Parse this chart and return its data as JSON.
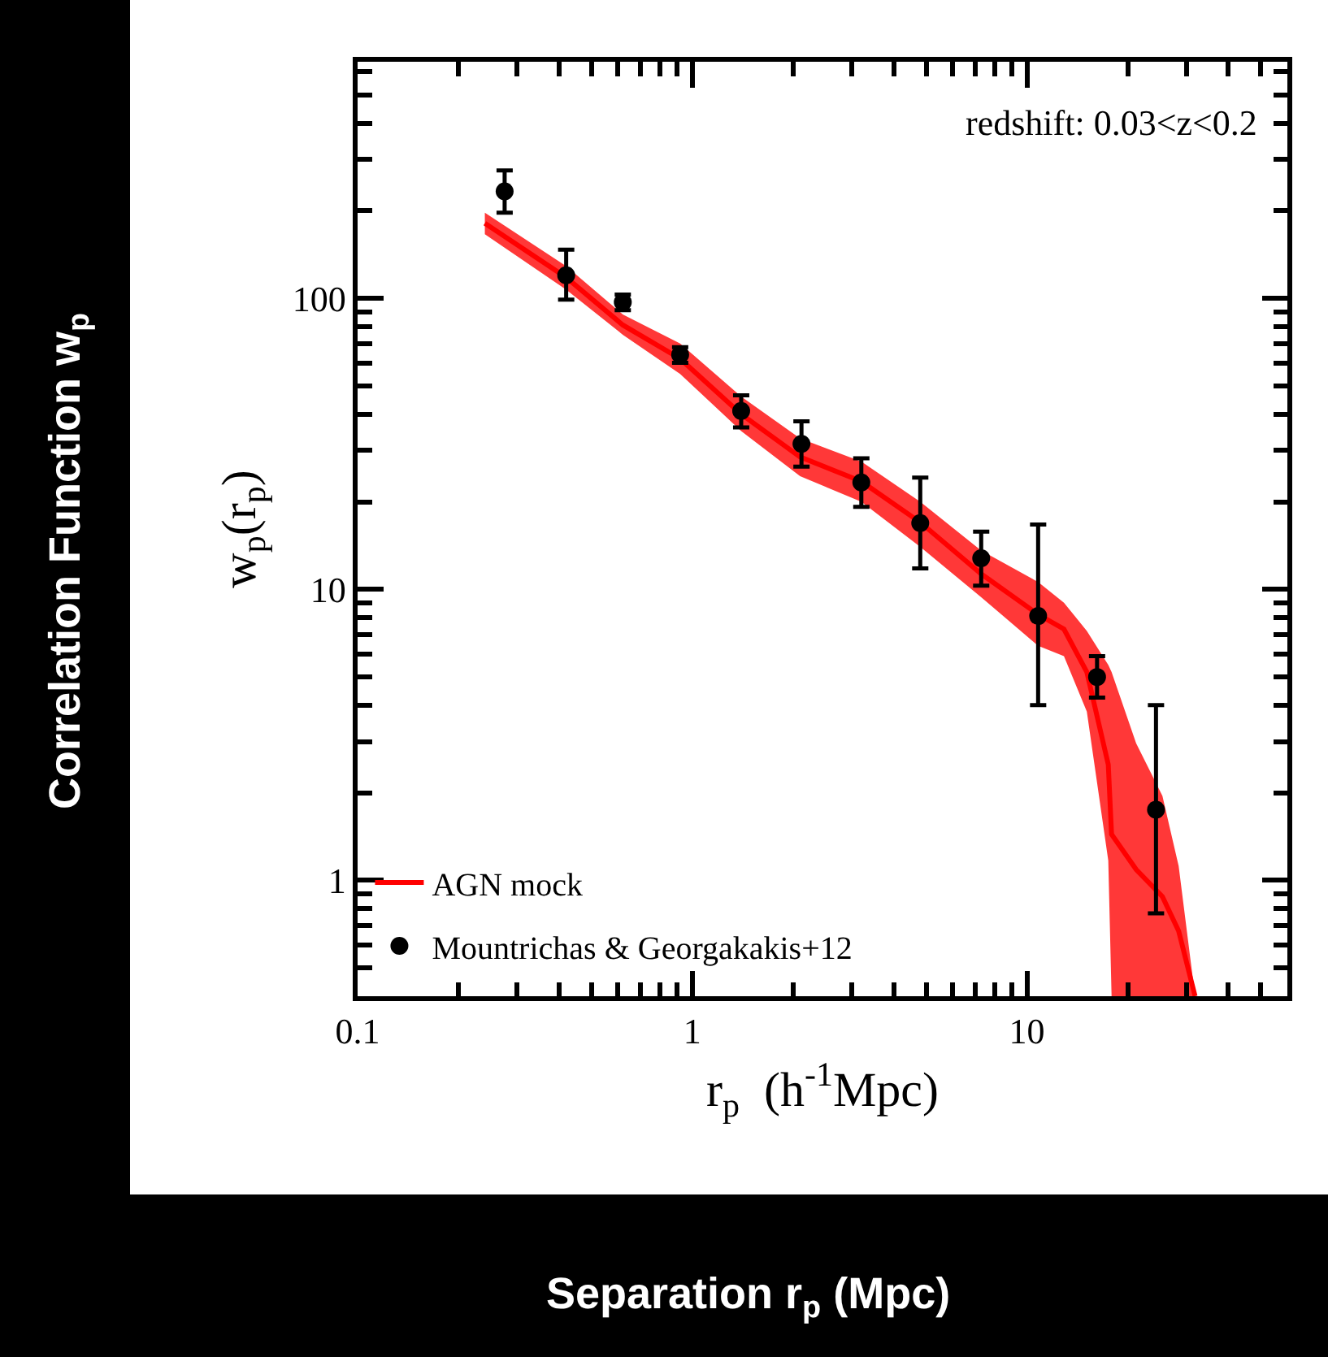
{
  "chart_data": {
    "type": "scatter",
    "xlabel": "r$_{p}$  (h$^{-1}$Mpc)",
    "ylabel": "w$_{p}$(r$_{p}$)",
    "annotations": [
      "redshift: 0.03<z<0.2",
      "Correlation Function w$_{p}$",
      "Separation r$_{p}$ (Mpc)"
    ],
    "log": "xy",
    "xlim": [
      0.1,
      60
    ],
    "ylim": [
      0.4,
      650
    ],
    "xticks": [
      0.1,
      1,
      10
    ],
    "yticks": [
      1,
      10,
      100
    ],
    "legend": "bottom left",
    "grid": false,
    "series": [
      {
        "name": "AGN mock",
        "type": "line",
        "marker": "none",
        "color": "#ff0000",
        "x": [
          0.24,
          0.42,
          0.62,
          0.92,
          1.4,
          2.1,
          3.2,
          4.8,
          7.3,
          10.8,
          12.9,
          15.1,
          17.5,
          17.9,
          21.2,
          25.4,
          28.4,
          31.8
        ],
        "values": [
          181,
          118,
          81,
          62,
          40,
          28.5,
          23.5,
          17,
          11.3,
          8.2,
          7.3,
          5.2,
          2.5,
          1.44,
          1.09,
          0.88,
          0.67,
          0.4
        ],
        "lower": [
          166,
          107,
          75,
          55,
          35,
          24.5,
          20,
          14,
          9.4,
          6.4,
          5.9,
          3.8,
          1.17,
          0.4,
          0.4,
          0.4,
          0.4,
          0.4
        ],
        "upper": [
          197,
          129,
          88,
          70,
          46,
          33,
          27.5,
          20,
          13.6,
          10.6,
          9.0,
          7.2,
          5.5,
          5.2,
          2.96,
          1.95,
          1.12,
          0.4
        ]
      },
      {
        "name": "Mountrichas & Georgakakis+12",
        "marker": "circle",
        "color": "#000000",
        "x": [
          0.275,
          0.42,
          0.62,
          0.92,
          1.4,
          2.12,
          3.2,
          4.8,
          7.3,
          10.8,
          16.2,
          24.3
        ],
        "values": [
          233,
          120,
          97,
          64,
          41,
          31.6,
          23.3,
          16.9,
          12.8,
          8.1,
          5.0,
          1.75
        ],
        "errors": [
          [
            197,
            275
          ],
          [
            99,
            147
          ],
          [
            91,
            103
          ],
          [
            60,
            68
          ],
          [
            36,
            46.4
          ],
          [
            26.4,
            37.8
          ],
          [
            19.2,
            28.2
          ],
          [
            11.8,
            24.2
          ],
          [
            10.3,
            15.8
          ],
          [
            4.0,
            16.7
          ],
          [
            4.25,
            5.9
          ],
          [
            0.77,
            4.0
          ]
        ]
      }
    ]
  }
}
